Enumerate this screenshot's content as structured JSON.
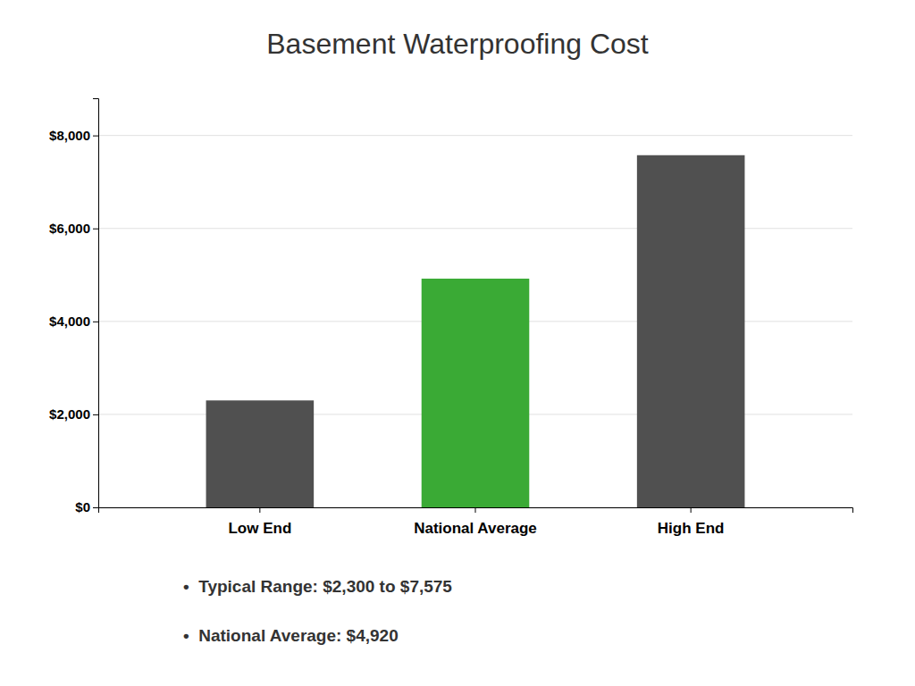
{
  "chart_data": {
    "type": "bar",
    "title": "Basement Waterproofing Cost",
    "categories": [
      "Low End",
      "National Average",
      "High End"
    ],
    "values": [
      2300,
      4920,
      7575
    ],
    "colors": [
      "#505050",
      "#3aaa35",
      "#505050"
    ],
    "ylim": [
      0,
      8800
    ],
    "yticks": [
      {
        "value": 0,
        "label": "$0"
      },
      {
        "value": 2000,
        "label": "$2,000"
      },
      {
        "value": 4000,
        "label": "$4,000"
      },
      {
        "value": 6000,
        "label": "$6,000"
      },
      {
        "value": 8000,
        "label": "$8,000"
      }
    ],
    "grid": true,
    "annotations": [
      "•  Typical Range: $2,300 to $7,575",
      "•  National Average: $4,920"
    ]
  }
}
